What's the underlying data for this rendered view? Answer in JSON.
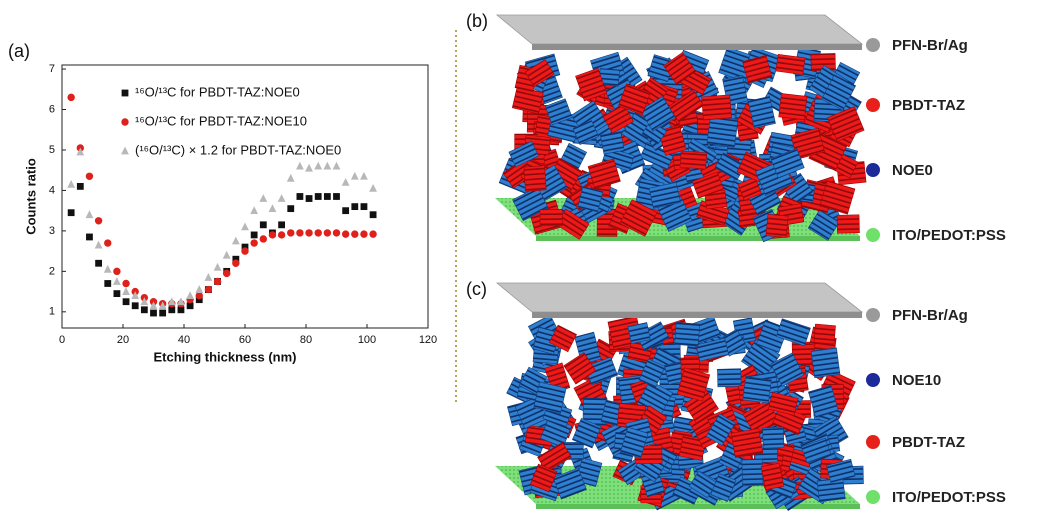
{
  "chart_data": {
    "type": "scatter",
    "label": "(a)",
    "x_label": "Etching thickness (nm)",
    "y_label": "Counts ratio",
    "xlim": [
      0,
      120
    ],
    "xticks": [
      0,
      20,
      40,
      60,
      80,
      100,
      120
    ],
    "ylim": [
      0.6,
      7.1
    ],
    "yticks": [
      1,
      2,
      3,
      4,
      5,
      6,
      7
    ],
    "x": [
      3,
      6,
      9,
      12,
      15,
      18,
      21,
      24,
      27,
      30,
      33,
      36,
      39,
      42,
      45,
      48,
      51,
      54,
      57,
      60,
      63,
      66,
      69,
      72,
      75,
      78,
      81,
      84,
      87,
      90,
      93,
      96,
      99,
      102
    ],
    "series": [
      {
        "name": "¹⁶O/¹³C for PBDT-TAZ:NOE0",
        "color": "#111111",
        "marker": "square",
        "values": [
          3.45,
          4.1,
          2.85,
          2.2,
          1.7,
          1.45,
          1.25,
          1.15,
          1.05,
          0.97,
          0.97,
          1.05,
          1.05,
          1.15,
          1.3,
          1.55,
          1.75,
          2.0,
          2.3,
          2.6,
          2.9,
          3.15,
          2.95,
          3.15,
          3.55,
          3.85,
          3.8,
          3.85,
          3.85,
          3.85,
          3.5,
          3.6,
          3.6,
          3.4
        ]
      },
      {
        "name": "¹⁶O/¹³C for PBDT-TAZ:NOE10",
        "color": "#e0201b",
        "marker": "circle",
        "values": [
          6.3,
          5.05,
          4.35,
          3.25,
          2.7,
          2.0,
          1.7,
          1.5,
          1.35,
          1.25,
          1.2,
          1.2,
          1.2,
          1.3,
          1.4,
          1.55,
          1.75,
          1.95,
          2.2,
          2.5,
          2.7,
          2.8,
          2.9,
          2.9,
          2.95,
          2.95,
          2.95,
          2.95,
          2.95,
          2.95,
          2.92,
          2.92,
          2.92,
          2.92
        ]
      },
      {
        "name": "(¹⁶O/¹³C) × 1.2 for PBDT-TAZ:NOE0",
        "color": "#b8b8b8",
        "marker": "triangle",
        "values": [
          4.15,
          4.95,
          3.4,
          2.65,
          2.05,
          1.75,
          1.5,
          1.4,
          1.25,
          1.15,
          1.15,
          1.25,
          1.25,
          1.4,
          1.55,
          1.85,
          2.1,
          2.4,
          2.75,
          3.1,
          3.5,
          3.8,
          3.55,
          3.8,
          4.3,
          4.6,
          4.55,
          4.6,
          4.6,
          4.6,
          4.2,
          4.35,
          4.35,
          4.05
        ]
      }
    ]
  },
  "panels": [
    {
      "label": "(b)",
      "legend": [
        {
          "text": "PFN-Br/Ag",
          "color": "#9a9a9a"
        },
        {
          "text": "PBDT-TAZ",
          "color": "#e8201b"
        },
        {
          "text": "NOE0",
          "color": "#1c2a9a"
        },
        {
          "text": "ITO/PEDOT:PSS",
          "color": "#6fe06a"
        }
      ]
    },
    {
      "label": "(c)",
      "legend": [
        {
          "text": "PFN-Br/Ag",
          "color": "#9a9a9a"
        },
        {
          "text": "NOE10",
          "color": "#1c2a9a"
        },
        {
          "text": "PBDT-TAZ",
          "color": "#e8201b"
        },
        {
          "text": "ITO/PEDOT:PSS",
          "color": "#6fe06a"
        }
      ]
    }
  ]
}
